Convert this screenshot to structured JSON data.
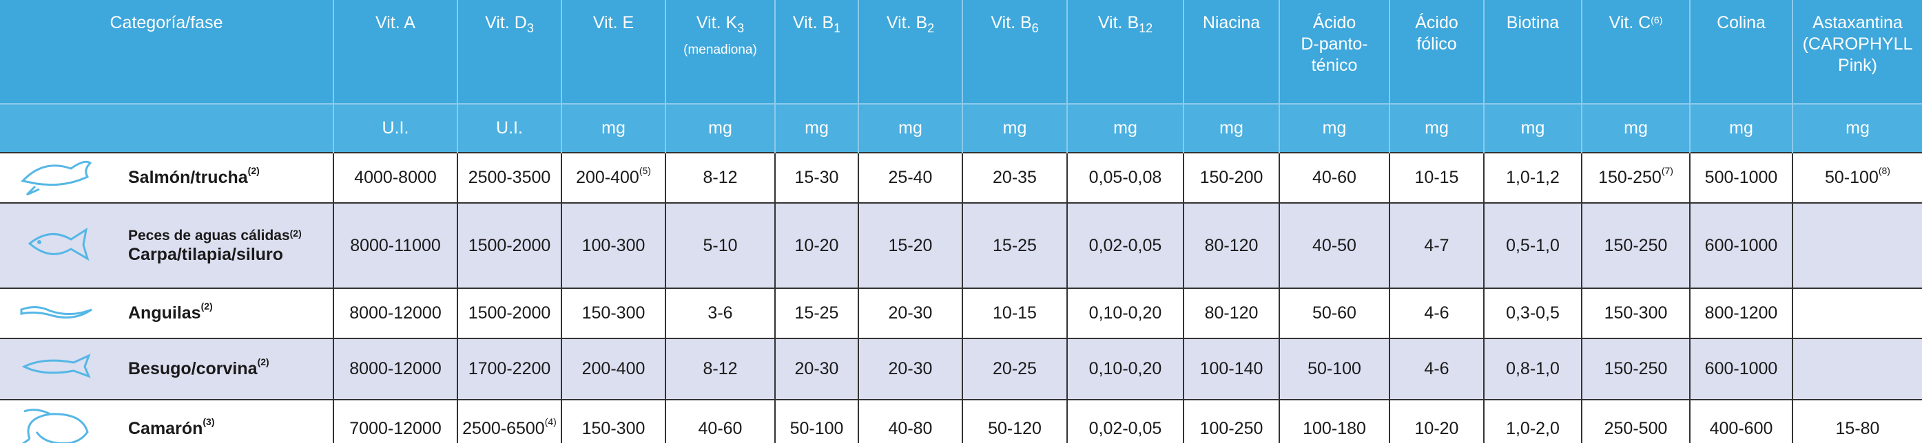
{
  "header": {
    "category": "Categoría/fase",
    "columns": [
      [
        "Vit. A"
      ],
      [
        {
          "text": "Vit. D",
          "sub": "3"
        }
      ],
      [
        "Vit. E"
      ],
      [
        {
          "text": "Vit. K",
          "sub": "3"
        },
        "(menadiona)"
      ],
      [
        {
          "text": "Vit. B",
          "sub": "1"
        }
      ],
      [
        {
          "text": "Vit. B",
          "sub": "2"
        }
      ],
      [
        {
          "text": "Vit. B",
          "sub": "6"
        }
      ],
      [
        {
          "text": "Vit. B",
          "sub": "12"
        }
      ],
      [
        "Niacina"
      ],
      [
        "Ácido",
        "D-panto-",
        "ténico"
      ],
      [
        "Ácido",
        "fólico"
      ],
      [
        "Biotina"
      ],
      [
        {
          "text": "Vit. C",
          "sup": "(6)"
        }
      ],
      [
        "Colina"
      ],
      [
        "Astaxantina",
        "(CAROPHYLL",
        "Pink)"
      ]
    ],
    "units": [
      "U.I.",
      "U.I.",
      "mg",
      "mg",
      "mg",
      "mg",
      "mg",
      "mg",
      "mg",
      "mg",
      "mg",
      "mg",
      "mg",
      "mg",
      "mg"
    ]
  },
  "rows": [
    {
      "name": "Salmón/trucha",
      "sup": "(2)",
      "cells": [
        "4000-8000",
        "2500-3500",
        {
          "text": "200-400",
          "sup": "(5)"
        },
        "8-12",
        "15-30",
        "25-40",
        "20-35",
        "0,05-0,08",
        "150-200",
        "40-60",
        "10-15",
        "1,0-1,2",
        {
          "text": "150-250",
          "sup": "(7)"
        },
        "500-1000",
        {
          "text": "50-100",
          "sup": "(8)"
        }
      ]
    },
    {
      "group": "Peces de aguas cálidas",
      "sup": "(2)",
      "name": "Carpa/tilapia/siluro",
      "cells": [
        "8000-11000",
        "1500-2000",
        "100-300",
        "5-10",
        "10-20",
        "15-20",
        "15-25",
        "0,02-0,05",
        "80-120",
        "40-50",
        "4-7",
        "0,5-1,0",
        "150-250",
        "600-1000",
        null
      ]
    },
    {
      "name": "Anguilas",
      "sup": "(2)",
      "cells": [
        "8000-12000",
        "1500-2000",
        "150-300",
        "3-6",
        "15-25",
        "20-30",
        "10-15",
        "0,10-0,20",
        "80-120",
        "50-60",
        "4-6",
        "0,3-0,5",
        "150-300",
        "800-1200",
        null
      ]
    },
    {
      "name": "Besugo/corvina",
      "sup": "(2)",
      "cells": [
        "8000-12000",
        "1700-2200",
        "200-400",
        "8-12",
        "20-30",
        "20-30",
        "20-25",
        "0,10-0,20",
        "100-140",
        "50-100",
        "4-6",
        "0,8-1,0",
        "150-250",
        "600-1000",
        null
      ]
    },
    {
      "name": "Camarón",
      "sup": "(3)",
      "cells": [
        "7000-12000",
        {
          "text": "2500-6500",
          "sup": "(4)"
        },
        "150-300",
        "40-60",
        "50-100",
        "40-80",
        "50-120",
        "0,02-0,05",
        "100-250",
        "100-180",
        "10-20",
        "1,0-2,0",
        "250-500",
        "400-600",
        "15-80"
      ]
    }
  ]
}
